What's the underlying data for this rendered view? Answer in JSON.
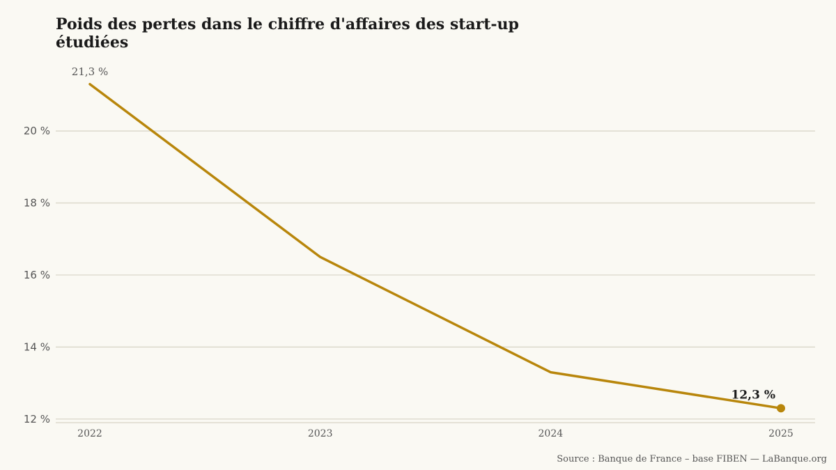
{
  "chart_data": {
    "type": "line",
    "title": "Poids des pertes dans le chiffre d'affaires des start-up étudiées",
    "x": [
      "2022",
      "2023",
      "2024",
      "2025"
    ],
    "series": [
      {
        "values": [
          21.3,
          16.5,
          13.3,
          12.3
        ]
      }
    ],
    "yticks": [
      12,
      14,
      16,
      18,
      20
    ],
    "ytick_labels": [
      "12 %",
      "14 %",
      "16 %",
      "18 %",
      "20 %"
    ],
    "ylim": [
      11.9,
      21.8
    ],
    "grid": true,
    "annotations": [
      {
        "index": 0,
        "text": "21,3 %"
      },
      {
        "index": 3,
        "text": "12,3 %"
      }
    ],
    "source": "Source : Banque de France – base FIBEN — LaBanque.org",
    "colors": {
      "line": "#b8860b",
      "grid": "#d6d3c4",
      "background": "#faf9f3"
    }
  }
}
